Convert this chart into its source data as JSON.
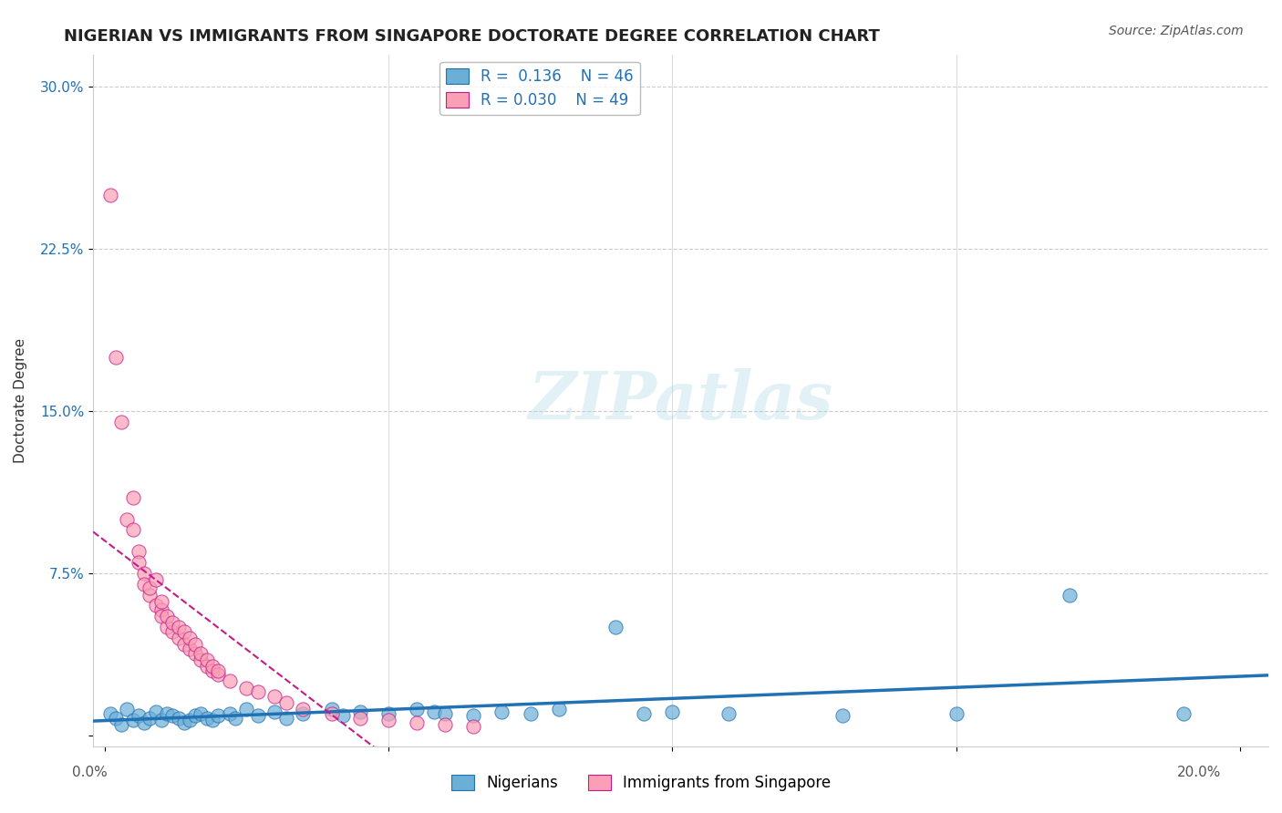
{
  "title": "NIGERIAN VS IMMIGRANTS FROM SINGAPORE DOCTORATE DEGREE CORRELATION CHART",
  "source": "Source: ZipAtlas.com",
  "ylabel": "Doctorate Degree",
  "yticks": [
    0.0,
    0.075,
    0.15,
    0.225,
    0.3
  ],
  "ytick_labels": [
    "",
    "7.5%",
    "15.0%",
    "22.5%",
    "30.0%"
  ],
  "xlim": [
    -0.002,
    0.205
  ],
  "ylim": [
    -0.005,
    0.315
  ],
  "watermark": "ZIPatlas",
  "legend_R1": "R =  0.136",
  "legend_N1": "N = 46",
  "legend_R2": "R = 0.030",
  "legend_N2": "N = 49",
  "nigerians_x": [
    0.001,
    0.002,
    0.003,
    0.004,
    0.005,
    0.006,
    0.007,
    0.008,
    0.009,
    0.01,
    0.011,
    0.012,
    0.013,
    0.014,
    0.015,
    0.016,
    0.017,
    0.018,
    0.019,
    0.02,
    0.022,
    0.023,
    0.025,
    0.027,
    0.03,
    0.032,
    0.035,
    0.04,
    0.042,
    0.045,
    0.05,
    0.055,
    0.058,
    0.06,
    0.065,
    0.07,
    0.075,
    0.08,
    0.09,
    0.095,
    0.1,
    0.11,
    0.13,
    0.15,
    0.17,
    0.19
  ],
  "nigerians_y": [
    0.01,
    0.008,
    0.005,
    0.012,
    0.007,
    0.009,
    0.006,
    0.008,
    0.011,
    0.007,
    0.01,
    0.009,
    0.008,
    0.006,
    0.007,
    0.009,
    0.01,
    0.008,
    0.007,
    0.009,
    0.01,
    0.008,
    0.012,
    0.009,
    0.011,
    0.008,
    0.01,
    0.012,
    0.009,
    0.011,
    0.01,
    0.012,
    0.011,
    0.01,
    0.009,
    0.011,
    0.01,
    0.012,
    0.05,
    0.01,
    0.011,
    0.01,
    0.009,
    0.01,
    0.065,
    0.01
  ],
  "singapore_x": [
    0.001,
    0.002,
    0.003,
    0.004,
    0.005,
    0.005,
    0.006,
    0.006,
    0.007,
    0.007,
    0.008,
    0.008,
    0.009,
    0.009,
    0.01,
    0.01,
    0.01,
    0.011,
    0.011,
    0.012,
    0.012,
    0.013,
    0.013,
    0.014,
    0.014,
    0.015,
    0.015,
    0.016,
    0.016,
    0.017,
    0.017,
    0.018,
    0.018,
    0.019,
    0.019,
    0.02,
    0.02,
    0.022,
    0.025,
    0.027,
    0.03,
    0.032,
    0.035,
    0.04,
    0.045,
    0.05,
    0.055,
    0.06,
    0.065
  ],
  "singapore_y": [
    0.25,
    0.175,
    0.145,
    0.1,
    0.11,
    0.095,
    0.085,
    0.08,
    0.075,
    0.07,
    0.065,
    0.068,
    0.072,
    0.06,
    0.058,
    0.055,
    0.062,
    0.05,
    0.055,
    0.048,
    0.052,
    0.045,
    0.05,
    0.042,
    0.048,
    0.04,
    0.045,
    0.038,
    0.042,
    0.035,
    0.038,
    0.032,
    0.035,
    0.03,
    0.032,
    0.028,
    0.03,
    0.025,
    0.022,
    0.02,
    0.018,
    0.015,
    0.012,
    0.01,
    0.008,
    0.007,
    0.006,
    0.005,
    0.004
  ],
  "blue_color": "#6baed6",
  "pink_color": "#fa9fb5",
  "blue_line_color": "#2171b5",
  "pink_line_color": "#c51b8a",
  "grid_color": "#cccccc",
  "background_color": "#ffffff",
  "title_fontsize": 13,
  "axis_label_fontsize": 11,
  "tick_fontsize": 11,
  "legend_fontsize": 12,
  "source_fontsize": 10
}
